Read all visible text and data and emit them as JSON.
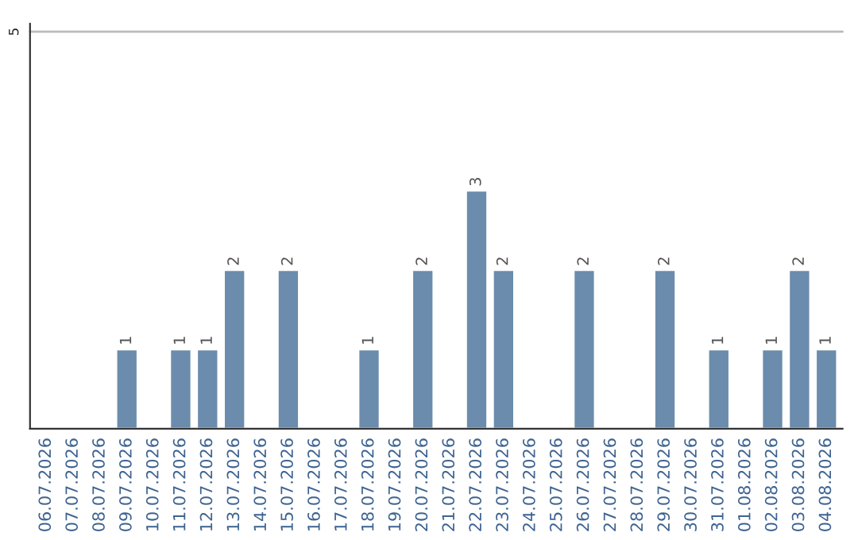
{
  "chart_data": {
    "type": "bar",
    "categories": [
      "06.07.2026",
      "07.07.2026",
      "08.07.2026",
      "09.07.2026",
      "10.07.2026",
      "11.07.2026",
      "12.07.2026",
      "13.07.2026",
      "14.07.2026",
      "15.07.2026",
      "16.07.2026",
      "17.07.2026",
      "18.07.2026",
      "19.07.2026",
      "20.07.2026",
      "21.07.2026",
      "22.07.2026",
      "23.07.2026",
      "24.07.2026",
      "25.07.2026",
      "26.07.2026",
      "27.07.2026",
      "28.07.2026",
      "29.07.2026",
      "30.07.2026",
      "31.07.2026",
      "01.08.2026",
      "02.08.2026",
      "03.08.2026",
      "04.08.2026"
    ],
    "values": [
      null,
      null,
      null,
      1,
      null,
      1,
      1,
      2,
      null,
      2,
      null,
      null,
      1,
      null,
      2,
      null,
      3,
      2,
      null,
      null,
      2,
      null,
      null,
      2,
      null,
      1,
      null,
      1,
      2,
      1
    ],
    "value_labels": [
      null,
      null,
      null,
      "1",
      null,
      "1",
      "1",
      "2",
      null,
      "2",
      null,
      null,
      "1",
      null,
      "2",
      null,
      "3",
      "2",
      null,
      null,
      "2",
      null,
      null,
      "2",
      null,
      "1",
      null,
      "1",
      "2",
      "1"
    ],
    "color": "#6b8cac",
    "ylim": [
      0,
      5.1
    ],
    "yticks": [
      5
    ],
    "grid": "y",
    "legend": false
  }
}
